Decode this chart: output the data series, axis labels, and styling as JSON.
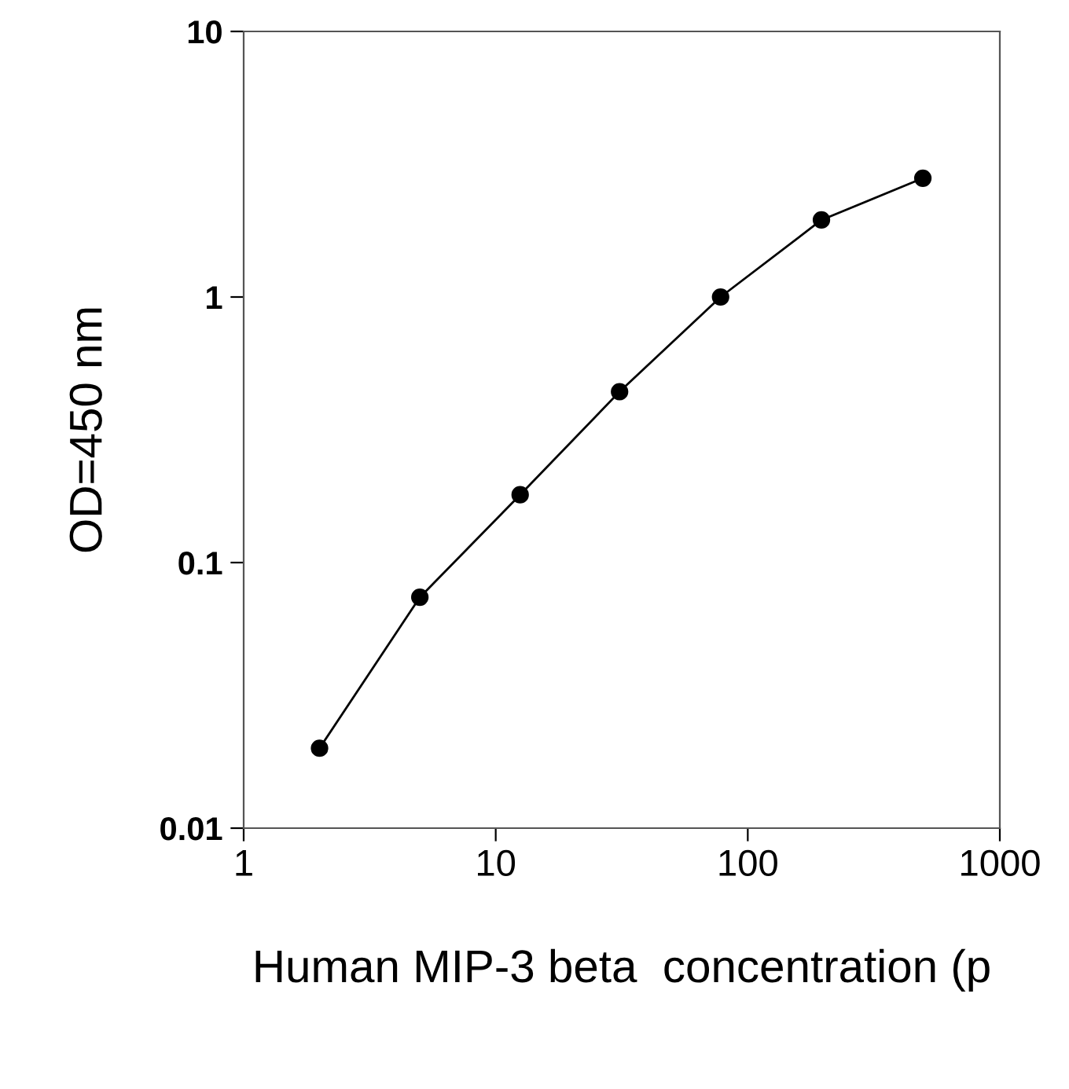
{
  "chart_data": {
    "type": "line",
    "xlabel": "Human MIP-3 beta  concentration (p",
    "ylabel": "OD=450 nm",
    "x": [
      2,
      5,
      12.5,
      31,
      78,
      196,
      495
    ],
    "series": [
      {
        "color": "#000000",
        "values": [
          0.02,
          0.074,
          0.18,
          0.44,
          1.0,
          1.95,
          2.8
        ]
      }
    ],
    "log": "xy",
    "xlim": [
      1,
      1000
    ],
    "ylim": [
      0.01,
      10
    ],
    "xticks": [
      1,
      10,
      100,
      1000
    ],
    "yticks": [
      0.01,
      0.1,
      1,
      10
    ],
    "marker": "circle",
    "line_style": "solid",
    "grid": false,
    "legend": false
  }
}
